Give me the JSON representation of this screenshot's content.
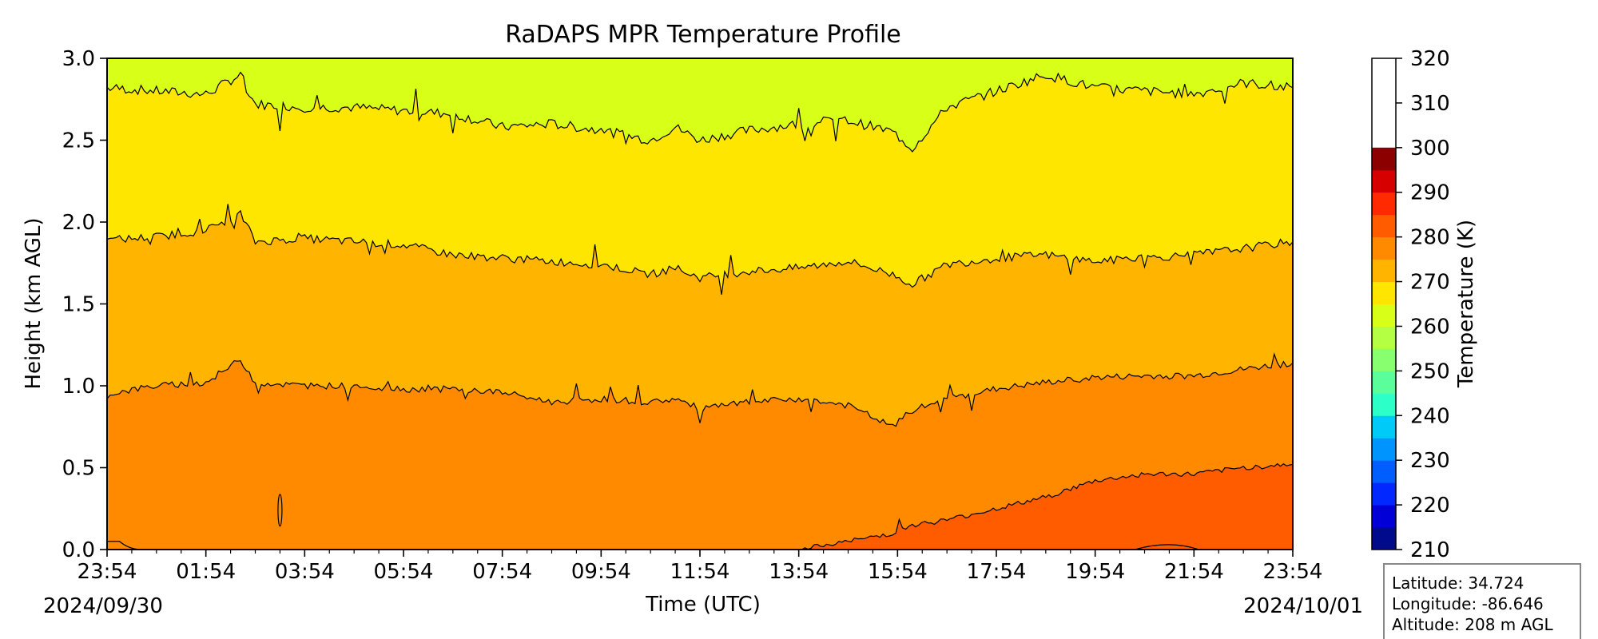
{
  "chart_data": {
    "type": "heatmap",
    "subtype": "filled-contour",
    "title": "RaDAPS MPR Temperature Profile",
    "xlabel": "Time (UTC)",
    "ylabel": "Height (km AGL)",
    "x_tick_labels": [
      "23:54",
      "01:54",
      "03:54",
      "05:54",
      "07:54",
      "09:54",
      "11:54",
      "13:54",
      "15:54",
      "17:54",
      "19:54",
      "21:54",
      "23:54"
    ],
    "x_hours": [
      0,
      2,
      4,
      6,
      8,
      10,
      12,
      14,
      16,
      18,
      20,
      22,
      24
    ],
    "x_minor_step_hours": 0.5,
    "date_start": "2024/09/30",
    "date_end": "2024/10/01",
    "ylim": [
      0,
      3
    ],
    "y_ticks": [
      0.0,
      0.5,
      1.0,
      1.5,
      2.0,
      2.5,
      3.0
    ],
    "y_tick_labels": [
      "0.0",
      "0.5",
      "1.0",
      "1.5",
      "2.0",
      "2.5",
      "3.0"
    ],
    "colorbar": {
      "label": "Temperature (K)",
      "range": [
        210,
        320
      ],
      "step": 5,
      "tick_values": [
        210,
        220,
        230,
        240,
        250,
        260,
        270,
        280,
        290,
        300,
        310,
        320
      ],
      "colors": [
        "#000a8c",
        "#0000d7",
        "#0028ff",
        "#005eff",
        "#0094ff",
        "#00cbf8",
        "#2dffc9",
        "#5aff9c",
        "#87ff6f",
        "#b4ff43",
        "#d8ff18",
        "#ffe600",
        "#ffb400",
        "#ff8a00",
        "#ff5c00",
        "#ff2a00",
        "#d70000",
        "#8c0000"
      ]
    },
    "contour_levels_K": [
      275,
      280,
      285,
      290,
      295,
      300
    ],
    "fill_bands": [
      {
        "range_K": [
          295,
          300
        ],
        "color": "#ff5c00"
      },
      {
        "range_K": [
          290,
          295
        ],
        "color": "#ff8a00"
      },
      {
        "range_K": [
          285,
          290
        ],
        "color": "#ffb400"
      },
      {
        "range_K": [
          280,
          285
        ],
        "color": "#ffe600"
      },
      {
        "range_K": [
          275,
          280
        ],
        "color": "#d8ff18"
      }
    ],
    "contour_heights_km": {
      "hours": [
        0,
        1,
        2,
        2.7,
        3,
        4,
        5,
        6,
        7,
        8,
        9,
        10,
        11,
        11.5,
        12,
        13,
        14,
        15,
        15.9,
        16.3,
        17,
        18,
        19,
        20,
        21,
        22,
        23,
        24
      ],
      "iso_275": [
        2.82,
        2.8,
        2.78,
        2.9,
        2.72,
        2.7,
        2.7,
        2.68,
        2.66,
        2.58,
        2.6,
        2.56,
        2.5,
        2.58,
        2.5,
        2.56,
        2.6,
        2.62,
        2.55,
        2.45,
        2.7,
        2.8,
        2.9,
        2.82,
        2.8,
        2.78,
        2.85,
        2.82
      ],
      "iso_280": [
        1.89,
        1.91,
        1.95,
        2.05,
        1.88,
        1.9,
        1.88,
        1.86,
        1.8,
        1.78,
        1.76,
        1.74,
        1.68,
        1.72,
        1.66,
        1.7,
        1.72,
        1.76,
        1.68,
        1.62,
        1.74,
        1.78,
        1.8,
        1.76,
        1.78,
        1.8,
        1.84,
        1.88
      ],
      "iso_285": [
        0.95,
        1.0,
        1.02,
        1.16,
        1.02,
        1.0,
        1.0,
        0.98,
        0.98,
        0.96,
        0.9,
        0.92,
        0.9,
        0.92,
        0.86,
        0.9,
        0.92,
        0.88,
        0.75,
        0.85,
        0.92,
        0.98,
        1.02,
        1.05,
        1.06,
        1.06,
        1.1,
        1.14
      ],
      "iso_290": [
        null,
        null,
        null,
        null,
        null,
        null,
        null,
        null,
        null,
        null,
        null,
        null,
        null,
        null,
        null,
        null,
        0.0,
        0.05,
        0.1,
        0.15,
        0.18,
        0.25,
        0.32,
        0.42,
        0.46,
        0.46,
        0.5,
        0.52
      ]
    },
    "info_box": {
      "latitude": "Latitude: 34.724",
      "longitude": "Longitude: -86.646",
      "altitude": "Altitude: 208 m AGL"
    }
  }
}
